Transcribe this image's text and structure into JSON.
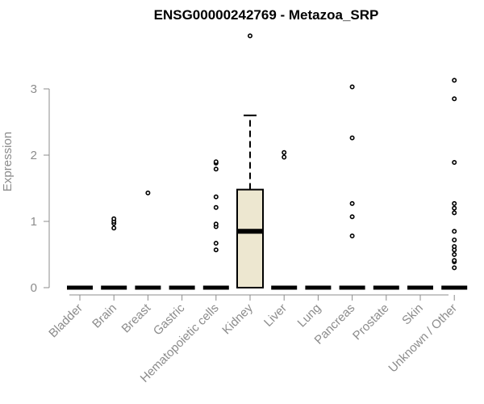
{
  "chart_data": {
    "type": "boxplot",
    "title": "ENSG00000242769 - Metazoa_SRP",
    "xlabel": "",
    "ylabel": "Expression",
    "ylim": [
      0,
      3.9
    ],
    "yticks": [
      0,
      1,
      2,
      3
    ],
    "grid": false,
    "legend": "none",
    "colors": {
      "box_fill": "#ede7d0",
      "box_stroke": "#000000",
      "axis": "#8c8c8c",
      "title": "#000000"
    },
    "categories": [
      "Bladder",
      "Brain",
      "Breast",
      "Gastric",
      "Hematopoietic cells",
      "Kidney",
      "Liver",
      "Lung",
      "Pancreas",
      "Prostate",
      "Skin",
      "Unknown / Other"
    ],
    "boxes": [
      {
        "name": "Bladder",
        "min": 0,
        "q1": 0,
        "median": 0,
        "q3": 0,
        "max": 0,
        "outliers": []
      },
      {
        "name": "Brain",
        "min": 0,
        "q1": 0,
        "median": 0,
        "q3": 0,
        "max": 0,
        "outliers": [
          0.9,
          0.97,
          1.0,
          1.04
        ]
      },
      {
        "name": "Breast",
        "min": 0,
        "q1": 0,
        "median": 0,
        "q3": 0,
        "max": 0,
        "outliers": [
          1.43
        ]
      },
      {
        "name": "Gastric",
        "min": 0,
        "q1": 0,
        "median": 0,
        "q3": 0,
        "max": 0,
        "outliers": []
      },
      {
        "name": "Hematopoietic cells",
        "min": 0,
        "q1": 0,
        "median": 0,
        "q3": 0,
        "max": 0,
        "outliers": [
          0.57,
          0.67,
          0.92,
          0.96,
          1.21,
          1.37,
          1.79,
          1.88,
          1.9
        ]
      },
      {
        "name": "Kidney",
        "min": 0,
        "q1": 0,
        "median": 0.85,
        "q3": 1.48,
        "max": 2.6,
        "outliers": [
          3.8
        ]
      },
      {
        "name": "Liver",
        "min": 0,
        "q1": 0,
        "median": 0,
        "q3": 0,
        "max": 0,
        "outliers": [
          1.97,
          2.04
        ]
      },
      {
        "name": "Lung",
        "min": 0,
        "q1": 0,
        "median": 0,
        "q3": 0,
        "max": 0,
        "outliers": []
      },
      {
        "name": "Pancreas",
        "min": 0,
        "q1": 0,
        "median": 0,
        "q3": 0,
        "max": 0,
        "outliers": [
          0.78,
          1.07,
          1.27,
          2.26,
          3.03
        ]
      },
      {
        "name": "Prostate",
        "min": 0,
        "q1": 0,
        "median": 0,
        "q3": 0,
        "max": 0,
        "outliers": []
      },
      {
        "name": "Skin",
        "min": 0,
        "q1": 0,
        "median": 0,
        "q3": 0,
        "max": 0,
        "outliers": []
      },
      {
        "name": "Unknown / Other",
        "min": 0,
        "q1": 0,
        "median": 0,
        "q3": 0,
        "max": 0,
        "outliers": [
          0.3,
          0.39,
          0.41,
          0.5,
          0.57,
          0.62,
          0.72,
          0.85,
          1.13,
          1.2,
          1.27,
          1.89,
          2.85,
          3.13
        ]
      }
    ]
  }
}
